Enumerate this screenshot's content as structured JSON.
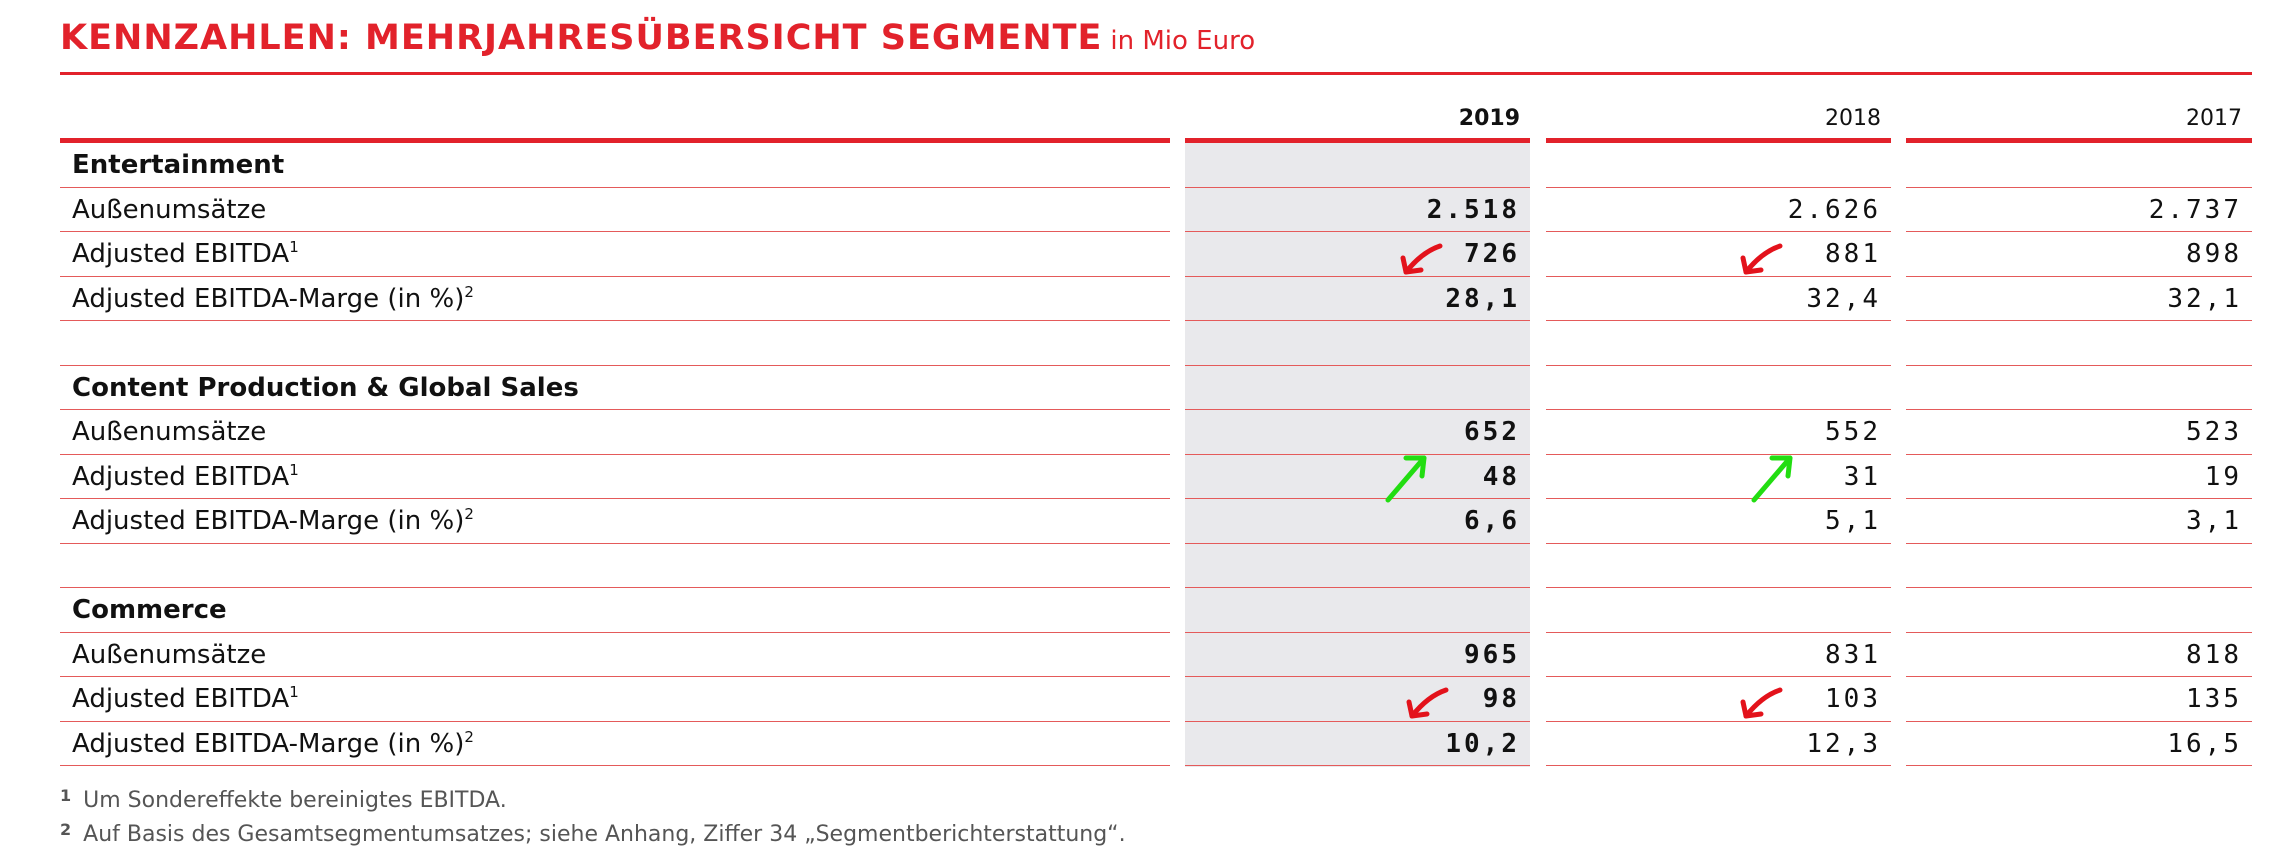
{
  "title": "KENNZAHLEN: MEHRJAHRESÜBERSICHT SEGMENTE",
  "unit": "in Mio Euro",
  "table": {
    "columns": [
      "2019",
      "2018",
      "2017"
    ],
    "sections": [
      {
        "name": "Entertainment",
        "rows": [
          {
            "label": "Außenumsätze",
            "values": [
              "2.518",
              "2.626",
              "2.737"
            ]
          },
          {
            "label": "Adjusted EBITDA",
            "sup": "1",
            "values": [
              "726",
              "881",
              "898"
            ]
          },
          {
            "label": "Adjusted EBITDA-Marge (in %)",
            "sup": "2",
            "values": [
              "28,1",
              "32,4",
              "32,1"
            ]
          }
        ]
      },
      {
        "name": "Content Production & Global Sales",
        "rows": [
          {
            "label": "Außenumsätze",
            "values": [
              "652",
              "552",
              "523"
            ]
          },
          {
            "label": "Adjusted EBITDA",
            "sup": "1",
            "values": [
              "48",
              "31",
              "19"
            ]
          },
          {
            "label": "Adjusted EBITDA-Marge (in %)",
            "sup": "2",
            "values": [
              "6,6",
              "5,1",
              "3,1"
            ]
          }
        ]
      },
      {
        "name": "Commerce",
        "rows": [
          {
            "label": "Außenumsätze",
            "values": [
              "965",
              "831",
              "818"
            ]
          },
          {
            "label": "Adjusted EBITDA",
            "sup": "1",
            "values": [
              "98",
              "103",
              "135"
            ]
          },
          {
            "label": "Adjusted EBITDA-Marge (in %)",
            "sup": "2",
            "values": [
              "10,2",
              "12,3",
              "16,5"
            ]
          }
        ]
      }
    ]
  },
  "footnotes": [
    {
      "marker": "1",
      "text": "Um Sondereffekte bereinigtes EBITDA."
    },
    {
      "marker": "2",
      "text": "Auf Basis des Gesamtsegmentumsatzes; siehe Anhang, Ziffer 34 „Segmentberichterstattung“."
    }
  ]
}
